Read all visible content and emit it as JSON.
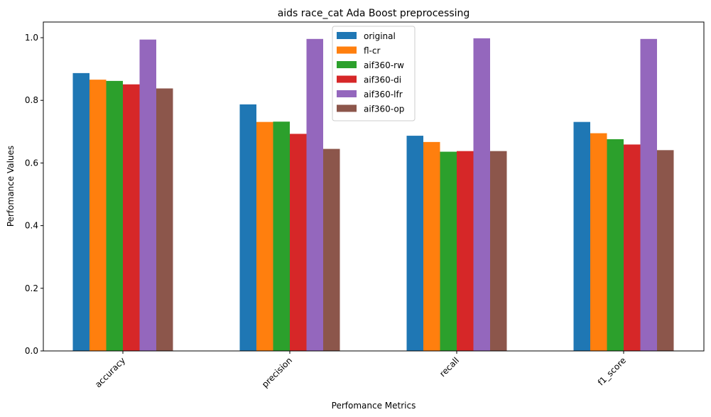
{
  "chart_data": {
    "type": "bar",
    "title": "aids race_cat Ada Boost preprocessing",
    "xlabel": "Perfomance Metrics",
    "ylabel": "Perfomance Values",
    "categories": [
      "accuracy",
      "precision",
      "recall",
      "f1_score"
    ],
    "ylim": [
      0,
      1.05
    ],
    "yticks": [
      "0.0",
      "0.2",
      "0.4",
      "0.6",
      "0.8",
      "1.0"
    ],
    "grid": false,
    "legend_position": "top-center",
    "series": [
      {
        "name": "original",
        "color": "#1f77b4",
        "values": [
          0.887,
          0.787,
          0.687,
          0.731
        ]
      },
      {
        "name": "fl-cr",
        "color": "#ff7f0e",
        "values": [
          0.866,
          0.731,
          0.667,
          0.695
        ]
      },
      {
        "name": "aif360-rw",
        "color": "#2ca02c",
        "values": [
          0.862,
          0.732,
          0.636,
          0.676
        ]
      },
      {
        "name": "aif360-di",
        "color": "#d62728",
        "values": [
          0.851,
          0.693,
          0.638,
          0.659
        ]
      },
      {
        "name": "aif360-lfr",
        "color": "#9467bd",
        "values": [
          0.994,
          0.996,
          0.998,
          0.996
        ]
      },
      {
        "name": "aif360-op",
        "color": "#8c564b",
        "values": [
          0.838,
          0.645,
          0.638,
          0.641
        ]
      }
    ]
  }
}
